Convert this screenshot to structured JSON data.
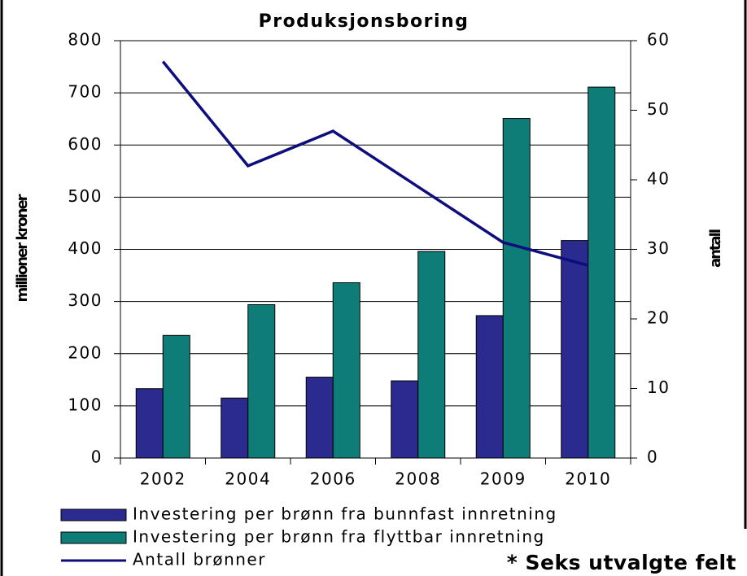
{
  "chart_data": {
    "type": "bar",
    "title": "Produksjonsboring",
    "categories": [
      "2002",
      "2004",
      "2006",
      "2008",
      "2009",
      "2010"
    ],
    "series": [
      {
        "name": "Investering per brønn fra bunnfast innretning",
        "color": "#2b2b8f",
        "values": [
          133,
          115,
          155,
          148,
          273,
          417
        ]
      },
      {
        "name": "Investering per brønn fra flyttbar innretning",
        "color": "#0f7d77",
        "values": [
          235,
          294,
          336,
          396,
          651,
          711
        ]
      },
      {
        "name": "Antall brønner",
        "color": "#0d0d7d",
        "type": "line",
        "axis": "y2",
        "values": [
          57,
          42,
          47,
          39,
          31,
          27.7
        ]
      }
    ],
    "ylabel": "millioner kroner",
    "y2label": "antall",
    "ylim": [
      0,
      800
    ],
    "yticks": [
      0,
      100,
      200,
      300,
      400,
      500,
      600,
      700,
      800
    ],
    "y2lim": [
      0,
      60
    ],
    "y2ticks": [
      0,
      10,
      20,
      30,
      40,
      50,
      60
    ],
    "grid": true,
    "legend": "bottom",
    "annotation": "* Seks utvalgte felt"
  }
}
